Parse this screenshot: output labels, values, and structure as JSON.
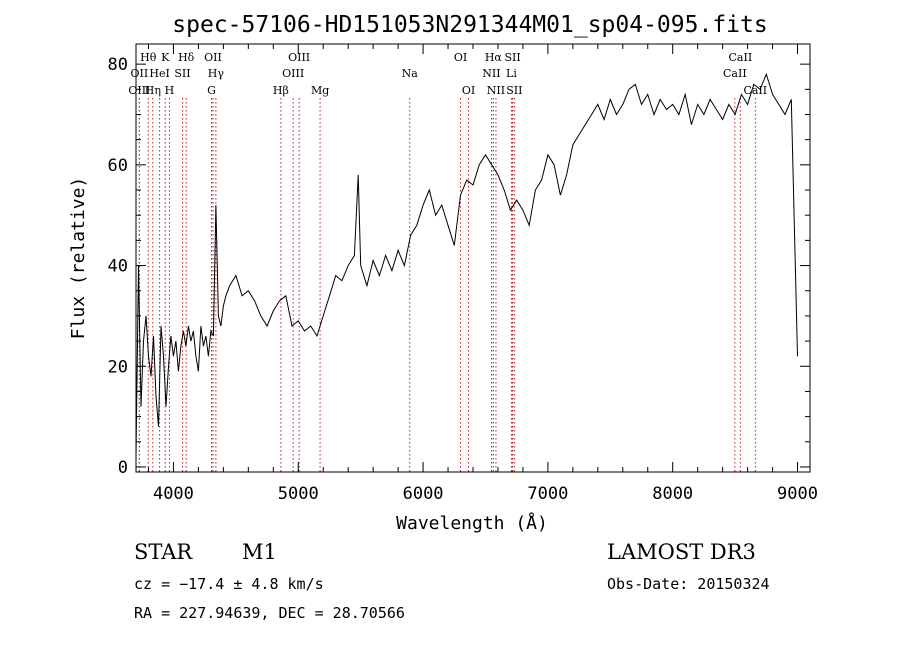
{
  "chart_data": {
    "type": "line",
    "title": "spec-57106-HD151053N291344M01_sp04-095.fits",
    "xlabel": "Wavelength (Å)",
    "ylabel": "Flux (relative)",
    "xlim": [
      3700,
      9100
    ],
    "ylim": [
      -1,
      84
    ],
    "xticks": [
      4000,
      5000,
      6000,
      7000,
      8000,
      9000
    ],
    "yticks": [
      0,
      20,
      40,
      60,
      80
    ],
    "grid": false,
    "legend": "none",
    "line_color": "#000000",
    "marker_color": "#b22222",
    "series": [
      {
        "x": [
          3700,
          3720,
          3740,
          3760,
          3780,
          3800,
          3820,
          3840,
          3860,
          3880,
          3900,
          3920,
          3940,
          3960,
          3980,
          4000,
          4020,
          4040,
          4060,
          4080,
          4100,
          4120,
          4140,
          4160,
          4180,
          4200,
          4220,
          4240,
          4260,
          4280,
          4300,
          4320,
          4340,
          4360,
          4380,
          4400,
          4420,
          4450,
          4500,
          4550,
          4600,
          4650,
          4700,
          4750,
          4800,
          4850,
          4900,
          4950,
          5000,
          5050,
          5100,
          5150,
          5200,
          5250,
          5300,
          5350,
          5400,
          5450,
          5480,
          5500,
          5550,
          5600,
          5650,
          5700,
          5750,
          5800,
          5850,
          5900,
          5950,
          6000,
          6050,
          6100,
          6150,
          6200,
          6250,
          6300,
          6350,
          6400,
          6450,
          6500,
          6550,
          6600,
          6650,
          6700,
          6750,
          6800,
          6850,
          6900,
          6950,
          7000,
          7050,
          7100,
          7150,
          7200,
          7250,
          7300,
          7350,
          7400,
          7450,
          7500,
          7550,
          7600,
          7650,
          7700,
          7750,
          7800,
          7850,
          7900,
          7950,
          8000,
          8050,
          8100,
          8150,
          8200,
          8250,
          8300,
          8350,
          8400,
          8450,
          8500,
          8550,
          8600,
          8650,
          8700,
          8750,
          8800,
          8850,
          8900,
          8950,
          9000
        ],
        "y": [
          2,
          40,
          12,
          25,
          30,
          22,
          18,
          26,
          14,
          8,
          28,
          22,
          12,
          20,
          26,
          22,
          25,
          19,
          24,
          27,
          24,
          28,
          25,
          27,
          22,
          19,
          28,
          24,
          26,
          22,
          27,
          26,
          52,
          30,
          28,
          32,
          34,
          36,
          38,
          34,
          35,
          33,
          30,
          28,
          31,
          33,
          34,
          28,
          29,
          27,
          28,
          26,
          30,
          34,
          38,
          37,
          40,
          42,
          58,
          40,
          36,
          41,
          38,
          42,
          39,
          43,
          40,
          46,
          48,
          52,
          55,
          50,
          52,
          48,
          44,
          54,
          57,
          56,
          60,
          62,
          60,
          58,
          55,
          51,
          53,
          51,
          48,
          55,
          57,
          62,
          60,
          54,
          58,
          64,
          66,
          68,
          70,
          72,
          69,
          73,
          70,
          72,
          75,
          76,
          72,
          74,
          70,
          73,
          71,
          72,
          70,
          74,
          68,
          72,
          70,
          73,
          71,
          69,
          72,
          70,
          74,
          72,
          76,
          75,
          78,
          74,
          72,
          70,
          73,
          22
        ]
      }
    ],
    "spectral_lines": [
      {
        "label": "Hθ",
        "x": 3798,
        "row": 0
      },
      {
        "label": "OII",
        "x": 3727,
        "row": 1
      },
      {
        "label": "OIII",
        "x": 3727,
        "row": 2
      },
      {
        "label": "HeI",
        "x": 3889,
        "row": 1
      },
      {
        "label": "Hη",
        "x": 3835,
        "row": 2
      },
      {
        "label": "K",
        "x": 3934,
        "row": 0
      },
      {
        "label": "H",
        "x": 3968,
        "row": 2
      },
      {
        "label": "SII",
        "x": 4072,
        "row": 1
      },
      {
        "label": "Hδ",
        "x": 4102,
        "row": 0
      },
      {
        "label": "OII",
        "x": 4317,
        "row": 0
      },
      {
        "label": "Hγ",
        "x": 4340,
        "row": 1
      },
      {
        "label": "G",
        "x": 4305,
        "row": 2
      },
      {
        "label": "Hβ",
        "x": 4861,
        "row": 2
      },
      {
        "label": "OIII",
        "x": 4959,
        "row": 1
      },
      {
        "label": "OIII",
        "x": 5007,
        "row": 0
      },
      {
        "label": "Mg",
        "x": 5175,
        "row": 2
      },
      {
        "label": "Na",
        "x": 5893,
        "row": 1
      },
      {
        "label": "OI",
        "x": 6300,
        "row": 0
      },
      {
        "label": "OI",
        "x": 6364,
        "row": 2
      },
      {
        "label": "Hα",
        "x": 6563,
        "row": 0
      },
      {
        "label": "NII",
        "x": 6548,
        "row": 1
      },
      {
        "label": "NII",
        "x": 6584,
        "row": 2
      },
      {
        "label": "SII",
        "x": 6717,
        "row": 0
      },
      {
        "label": "Li",
        "x": 6708,
        "row": 1
      },
      {
        "label": "SII",
        "x": 6731,
        "row": 2
      },
      {
        "label": "CaII",
        "x": 8542,
        "row": 0
      },
      {
        "label": "CaII",
        "x": 8498,
        "row": 1
      },
      {
        "label": "CaII",
        "x": 8662,
        "row": 2
      }
    ]
  },
  "info": {
    "object_class": "STAR",
    "subclass": "M1",
    "survey": "LAMOST DR3",
    "redshift": "cz = −17.4 ± 4.8 km/s",
    "obs_date": "Obs-Date: 20150324",
    "coords": "RA = 227.94639, DEC =  28.70566"
  }
}
